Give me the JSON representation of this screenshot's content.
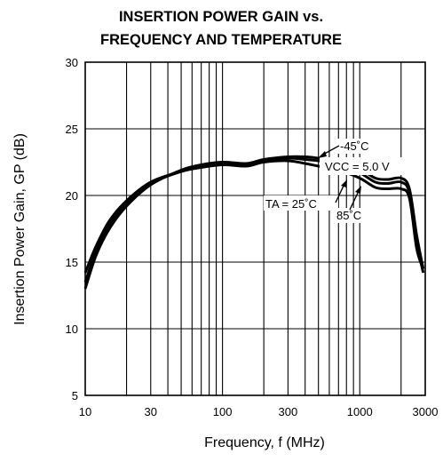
{
  "chart_data": {
    "type": "line",
    "title_lines": [
      "INSERTION POWER GAIN vs.",
      "FREQUENCY AND TEMPERATURE"
    ],
    "xlabel": "Frequency, f (MHz)",
    "ylabel": "Insertion Power Gain, GP (dB)",
    "x_scale": "log",
    "xlim": [
      10,
      3000
    ],
    "ylim": [
      5,
      30
    ],
    "x_ticks": [
      10,
      30,
      100,
      300,
      1000,
      3000
    ],
    "x_tick_labels": [
      "10",
      "30",
      "100",
      "300",
      "1000",
      "3000"
    ],
    "y_ticks": [
      5,
      10,
      15,
      20,
      25,
      30
    ],
    "y_tick_labels": [
      "5",
      "10",
      "15",
      "20",
      "25",
      "30"
    ],
    "grid": true,
    "annotations": {
      "vcc": "VCC = 5.0 V",
      "t_minus45": "-45˚C",
      "t_25": "TA = 25˚C",
      "t_85": "85˚C"
    },
    "series": [
      {
        "name": "-45˚C",
        "x": [
          10,
          12,
          15,
          20,
          30,
          50,
          70,
          100,
          150,
          200,
          300,
          400,
          500,
          700,
          1000,
          1300,
          1600,
          2000,
          2300,
          2600,
          2900
        ],
        "y": [
          13.0,
          15.5,
          17.5,
          19.2,
          20.8,
          21.9,
          22.3,
          22.5,
          22.4,
          22.7,
          22.9,
          22.9,
          22.8,
          22.6,
          22.0,
          21.3,
          21.2,
          21.3,
          20.5,
          17.0,
          14.5
        ]
      },
      {
        "name": "TA = 25˚C",
        "x": [
          10,
          12,
          15,
          20,
          30,
          50,
          70,
          100,
          150,
          200,
          300,
          400,
          500,
          700,
          1000,
          1300,
          1600,
          2000,
          2300,
          2600,
          2900
        ],
        "y": [
          13.5,
          15.8,
          17.8,
          19.4,
          20.9,
          21.8,
          22.2,
          22.4,
          22.3,
          22.6,
          22.8,
          22.7,
          22.6,
          22.3,
          21.7,
          21.0,
          20.9,
          21.0,
          20.2,
          16.5,
          14.2
        ]
      },
      {
        "name": "85˚C",
        "x": [
          10,
          12,
          15,
          20,
          30,
          50,
          70,
          100,
          150,
          200,
          300,
          400,
          500,
          700,
          1000,
          1300,
          1600,
          2000,
          2300,
          2600,
          2900
        ],
        "y": [
          14.2,
          16.2,
          18.1,
          19.6,
          21.0,
          21.8,
          22.1,
          22.3,
          22.2,
          22.5,
          22.6,
          22.4,
          22.2,
          21.9,
          21.3,
          20.6,
          20.5,
          20.5,
          19.8,
          16.0,
          14.5
        ]
      }
    ]
  }
}
